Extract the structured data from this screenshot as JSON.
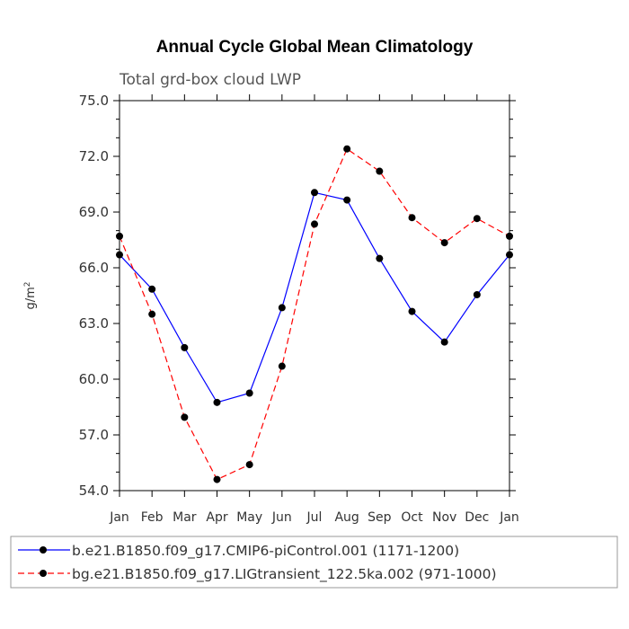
{
  "chart_data": {
    "type": "line",
    "title": "Annual Cycle Global Mean Climatology",
    "subtitle": "Total grd-box cloud LWP",
    "ylabel": "g/m",
    "ylabel_superscript": "2",
    "xlabel": "",
    "categories": [
      "Jan",
      "Feb",
      "Mar",
      "Apr",
      "May",
      "Jun",
      "Jul",
      "Aug",
      "Sep",
      "Oct",
      "Nov",
      "Dec",
      "Jan"
    ],
    "ylim": [
      54.0,
      75.0
    ],
    "yticks": [
      "54.0",
      "57.0",
      "60.0",
      "63.0",
      "66.0",
      "69.0",
      "72.0",
      "75.0"
    ],
    "grid": false,
    "legend_position": "bottom",
    "series": [
      {
        "name": "b.e21.B1850.f09_g17.CMIP6-piControl.001 (1171-1200)",
        "color": "#0000ff",
        "dash": "solid",
        "values": [
          66.7,
          64.85,
          61.7,
          58.75,
          59.25,
          63.85,
          70.05,
          69.65,
          66.5,
          63.65,
          62.0,
          64.55,
          66.7
        ]
      },
      {
        "name": "bg.e21.B1850.f09_g17.LIGtransient_122.5ka.002 (971-1000)",
        "color": "#ff0000",
        "dash": "dashed",
        "values": [
          67.7,
          63.5,
          57.95,
          54.6,
          55.4,
          60.7,
          68.35,
          72.4,
          71.2,
          68.7,
          67.35,
          68.65,
          67.7
        ]
      }
    ]
  }
}
